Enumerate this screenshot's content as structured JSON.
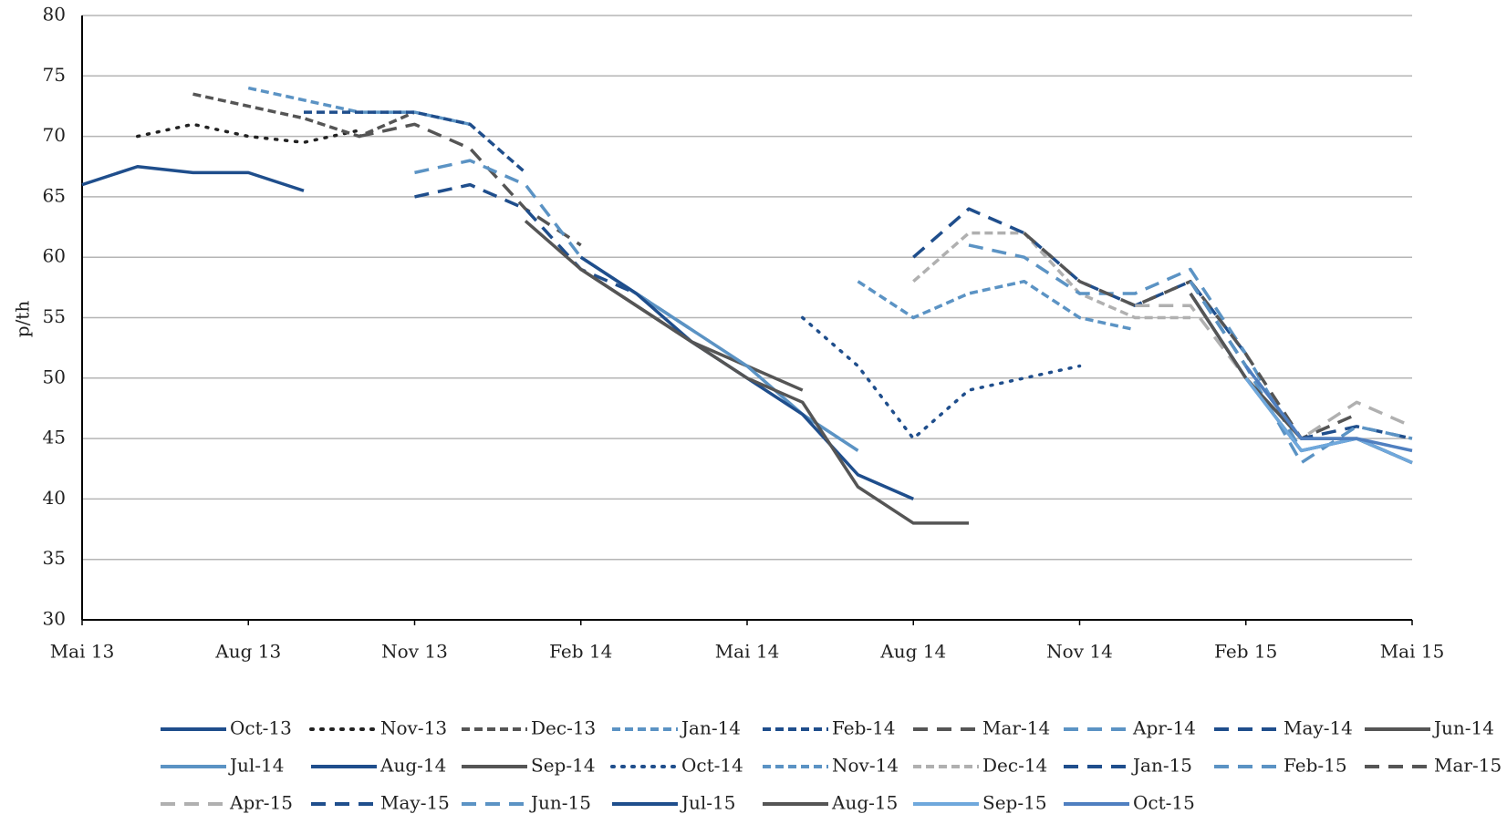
{
  "chart_data": {
    "type": "line",
    "y_label": "p/th",
    "x": [
      "2013-05",
      "2013-06",
      "2013-07",
      "2013-08",
      "2013-09",
      "2013-10",
      "2013-11",
      "2013-12",
      "2014-01",
      "2014-02",
      "2014-03",
      "2014-04",
      "2014-05",
      "2014-06",
      "2014-07",
      "2014-08",
      "2014-09",
      "2014-10",
      "2014-11",
      "2014-12",
      "2015-01",
      "2015-02",
      "2015-03",
      "2015-04",
      "2015-05"
    ],
    "xlim": [
      "2013-05",
      "2015-05"
    ],
    "xticks": [
      {
        "value": "2013-05",
        "label": "Mai 13"
      },
      {
        "value": "2013-08",
        "label": "Aug 13"
      },
      {
        "value": "2013-11",
        "label": "Nov 13"
      },
      {
        "value": "2014-02",
        "label": "Feb 14"
      },
      {
        "value": "2014-05",
        "label": "Mai 14"
      },
      {
        "value": "2014-08",
        "label": "Aug 14"
      },
      {
        "value": "2014-11",
        "label": "Nov 14"
      },
      {
        "value": "2015-02",
        "label": "Feb 15"
      },
      {
        "value": "2015-05",
        "label": "Mai 15"
      }
    ],
    "ylim": [
      30,
      80
    ],
    "yticks": [
      30,
      35,
      40,
      45,
      50,
      55,
      60,
      65,
      70,
      75,
      80
    ],
    "grid": true,
    "legend": "bottom",
    "series": [
      {
        "name": "Oct-13",
        "color": "#1f4e8c",
        "style": "solid",
        "values": [
          66,
          67.5,
          67,
          67,
          65.5,
          null,
          null,
          null,
          null,
          null,
          null,
          null,
          null,
          null,
          null,
          null,
          null,
          null,
          null,
          null,
          null,
          null,
          null,
          null,
          null
        ]
      },
      {
        "name": "Nov-13",
        "color": "#222222",
        "style": "dotted",
        "values": [
          null,
          70,
          71,
          70,
          69.5,
          70.5,
          null,
          null,
          null,
          null,
          null,
          null,
          null,
          null,
          null,
          null,
          null,
          null,
          null,
          null,
          null,
          null,
          null,
          null,
          null
        ]
      },
      {
        "name": "Dec-13",
        "color": "#555555",
        "style": "dashed",
        "values": [
          null,
          null,
          73.5,
          72.5,
          71.5,
          70,
          72,
          null,
          null,
          null,
          null,
          null,
          null,
          null,
          null,
          null,
          null,
          null,
          null,
          null,
          null,
          null,
          null,
          null,
          null
        ]
      },
      {
        "name": "Jan-14",
        "color": "#5b93c4",
        "style": "dashed",
        "values": [
          null,
          null,
          null,
          74,
          73,
          72,
          72,
          71,
          null,
          null,
          null,
          null,
          null,
          null,
          null,
          null,
          null,
          null,
          null,
          null,
          null,
          null,
          null,
          null,
          null
        ]
      },
      {
        "name": "Feb-14",
        "color": "#1f4e8c",
        "style": "dashed",
        "values": [
          null,
          null,
          null,
          null,
          72,
          72,
          72,
          71,
          67,
          null,
          null,
          null,
          null,
          null,
          null,
          null,
          null,
          null,
          null,
          null,
          null,
          null,
          null,
          null,
          null
        ]
      },
      {
        "name": "Mar-14",
        "color": "#555555",
        "style": "longdash",
        "values": [
          null,
          null,
          null,
          null,
          null,
          70,
          71,
          69,
          64,
          61,
          null,
          null,
          null,
          null,
          null,
          null,
          null,
          null,
          null,
          null,
          null,
          null,
          null,
          null,
          null
        ]
      },
      {
        "name": "Apr-14",
        "color": "#5b93c4",
        "style": "longdash",
        "values": [
          null,
          null,
          null,
          null,
          null,
          null,
          67,
          68,
          66,
          60,
          57,
          null,
          null,
          null,
          null,
          null,
          null,
          null,
          null,
          null,
          null,
          null,
          null,
          null,
          null
        ]
      },
      {
        "name": "May-14",
        "color": "#1f4e8c",
        "style": "longdash",
        "values": [
          null,
          null,
          null,
          null,
          null,
          null,
          65,
          66,
          64,
          59,
          57,
          54,
          null,
          null,
          null,
          null,
          null,
          null,
          null,
          null,
          null,
          null,
          null,
          null,
          null
        ]
      },
      {
        "name": "Jun-14",
        "color": "#555555",
        "style": "solid",
        "values": [
          null,
          null,
          null,
          null,
          null,
          null,
          null,
          null,
          63,
          59,
          56,
          53,
          51,
          49,
          null,
          null,
          null,
          null,
          null,
          null,
          null,
          null,
          null,
          null,
          null
        ]
      },
      {
        "name": "Jul-14",
        "color": "#5b93c4",
        "style": "solid",
        "values": [
          null,
          null,
          null,
          null,
          null,
          null,
          null,
          null,
          null,
          60,
          57,
          54,
          51,
          47,
          44,
          null,
          null,
          null,
          null,
          null,
          null,
          null,
          null,
          null,
          null
        ]
      },
      {
        "name": "Aug-14",
        "color": "#1f4e8c",
        "style": "solid",
        "values": [
          null,
          null,
          null,
          null,
          null,
          null,
          null,
          null,
          null,
          60,
          57,
          53,
          50,
          47,
          42,
          40,
          null,
          null,
          null,
          null,
          null,
          null,
          null,
          null,
          null
        ]
      },
      {
        "name": "Sep-14",
        "color": "#555555",
        "style": "solid",
        "values": [
          null,
          null,
          null,
          null,
          null,
          null,
          null,
          null,
          null,
          59,
          56,
          53,
          50,
          48,
          41,
          38,
          38,
          null,
          null,
          null,
          null,
          null,
          null,
          null,
          null
        ]
      },
      {
        "name": "Oct-14",
        "color": "#1f4e8c",
        "style": "dotted",
        "values": [
          null,
          null,
          null,
          null,
          null,
          null,
          null,
          null,
          null,
          null,
          null,
          null,
          null,
          55,
          51,
          45,
          49,
          50,
          51,
          null,
          null,
          null,
          null,
          null,
          null
        ]
      },
      {
        "name": "Nov-14",
        "color": "#5b93c4",
        "style": "dashed",
        "values": [
          null,
          null,
          null,
          null,
          null,
          null,
          null,
          null,
          null,
          null,
          null,
          null,
          null,
          null,
          58,
          55,
          57,
          58,
          55,
          54,
          null,
          null,
          null,
          null,
          null
        ]
      },
      {
        "name": "Dec-14",
        "color": "#b0b0b0",
        "style": "dashed",
        "values": [
          null,
          null,
          null,
          null,
          null,
          null,
          null,
          null,
          null,
          null,
          null,
          null,
          null,
          null,
          null,
          58,
          62,
          62,
          57,
          55,
          55,
          null,
          null,
          null,
          null
        ]
      },
      {
        "name": "Jan-15",
        "color": "#1f4e8c",
        "style": "longdash",
        "values": [
          null,
          null,
          null,
          null,
          null,
          null,
          null,
          null,
          null,
          null,
          null,
          null,
          null,
          null,
          null,
          60,
          64,
          62,
          58,
          56,
          58,
          52,
          null,
          null,
          null
        ]
      },
      {
        "name": "Feb-15",
        "color": "#5b93c4",
        "style": "longdash",
        "values": [
          null,
          null,
          null,
          null,
          null,
          null,
          null,
          null,
          null,
          null,
          null,
          null,
          null,
          null,
          null,
          null,
          61,
          60,
          57,
          57,
          59,
          52,
          44,
          null,
          null
        ]
      },
      {
        "name": "Mar-15",
        "color": "#555555",
        "style": "longdash",
        "values": [
          null,
          null,
          null,
          null,
          null,
          null,
          null,
          null,
          null,
          null,
          null,
          null,
          null,
          null,
          null,
          null,
          null,
          62,
          58,
          56,
          58,
          52,
          45,
          47,
          null
        ]
      },
      {
        "name": "Apr-15",
        "color": "#b0b0b0",
        "style": "longdash",
        "values": [
          null,
          null,
          null,
          null,
          null,
          null,
          null,
          null,
          null,
          null,
          null,
          null,
          null,
          null,
          null,
          null,
          null,
          null,
          null,
          56,
          56,
          50,
          45,
          48,
          46
        ]
      },
      {
        "name": "May-15",
        "color": "#1f4e8c",
        "style": "longdash",
        "values": [
          null,
          null,
          null,
          null,
          null,
          null,
          null,
          null,
          null,
          null,
          null,
          null,
          null,
          null,
          null,
          null,
          null,
          null,
          null,
          null,
          58,
          51,
          45,
          46,
          45
        ]
      },
      {
        "name": "Jun-15",
        "color": "#5b93c4",
        "style": "longdash",
        "values": [
          null,
          null,
          null,
          null,
          null,
          null,
          null,
          null,
          null,
          null,
          null,
          null,
          null,
          null,
          null,
          null,
          null,
          null,
          null,
          null,
          58,
          51,
          43,
          46,
          45
        ]
      },
      {
        "name": "Jul-15",
        "color": "#1f4e8c",
        "style": "solid",
        "values": [
          null,
          null,
          null,
          null,
          null,
          null,
          null,
          null,
          null,
          null,
          null,
          null,
          null,
          null,
          null,
          null,
          null,
          null,
          null,
          null,
          57,
          50,
          44,
          45,
          43
        ]
      },
      {
        "name": "Aug-15",
        "color": "#555555",
        "style": "solid",
        "values": [
          null,
          null,
          null,
          null,
          null,
          null,
          null,
          null,
          null,
          null,
          null,
          null,
          null,
          null,
          null,
          null,
          null,
          null,
          null,
          null,
          57,
          50,
          45,
          45,
          43
        ]
      },
      {
        "name": "Sep-15",
        "color": "#6fa8dc",
        "style": "solid",
        "values": [
          null,
          null,
          null,
          null,
          null,
          null,
          null,
          null,
          null,
          null,
          null,
          null,
          null,
          null,
          null,
          null,
          null,
          null,
          null,
          null,
          null,
          50,
          44,
          45,
          43
        ]
      },
      {
        "name": "Oct-15",
        "color": "#4f7fc0",
        "style": "solid",
        "values": [
          null,
          null,
          null,
          null,
          null,
          null,
          null,
          null,
          null,
          null,
          null,
          null,
          null,
          null,
          null,
          null,
          null,
          null,
          null,
          null,
          null,
          51,
          45,
          45,
          44
        ]
      }
    ]
  }
}
